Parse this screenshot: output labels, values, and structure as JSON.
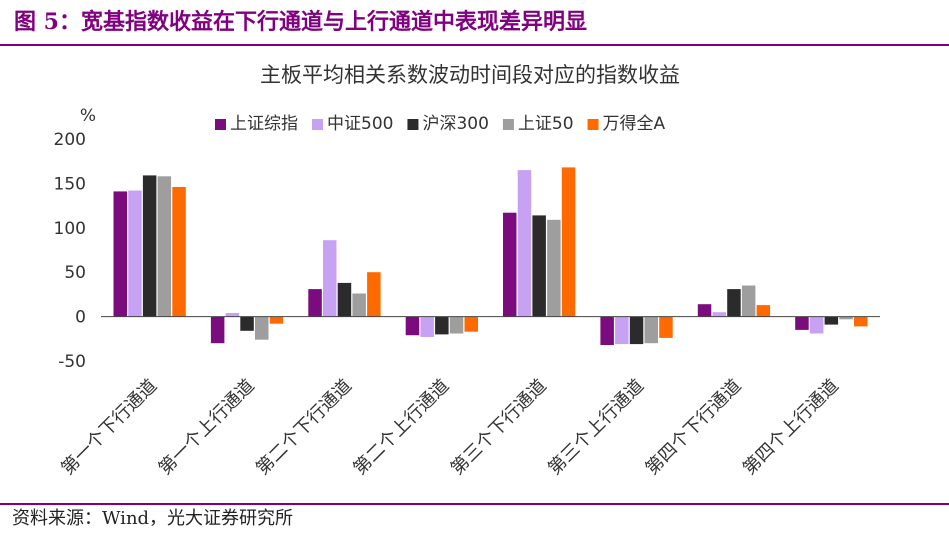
{
  "figure": {
    "label": "图 5：宽基指数收益在下行通道与上行通道中表现差异明显",
    "source": "资料来源：Wind，光大证券研究所"
  },
  "chart_data": {
    "type": "bar",
    "title": "主板平均相关系数波动时间段对应的指数收益",
    "ylabel": "%",
    "xlabel": "",
    "ylim": [
      -50,
      200
    ],
    "yticks": [
      -50,
      0,
      50,
      100,
      150,
      200
    ],
    "legend_position": "top-center",
    "grid": false,
    "categories": [
      "第一个下行通道",
      "第一个上行通道",
      "第二个下行通道",
      "第二个上行通道",
      "第三个下行通道",
      "第三个上行通道",
      "第四个下行通道",
      "第四个上行通道"
    ],
    "series": [
      {
        "name": "上证综指",
        "color": "#7B0C7E",
        "values": [
          141,
          -30,
          31,
          -21,
          117,
          -32,
          14,
          -15
        ]
      },
      {
        "name": "中证500",
        "color": "#C8A2F2",
        "values": [
          142,
          4,
          86,
          -23,
          165,
          -31,
          5,
          -19
        ]
      },
      {
        "name": "沪深300",
        "color": "#2B2B2B",
        "values": [
          159,
          -16,
          38,
          -20,
          114,
          -31,
          31,
          -9
        ]
      },
      {
        "name": "上证50",
        "color": "#9E9E9E",
        "values": [
          158,
          -26,
          26,
          -19,
          109,
          -30,
          35,
          -3
        ]
      },
      {
        "name": "万得全A",
        "color": "#FF6A00",
        "values": [
          146,
          -8,
          50,
          -17,
          168,
          -24,
          13,
          -11
        ]
      }
    ]
  }
}
